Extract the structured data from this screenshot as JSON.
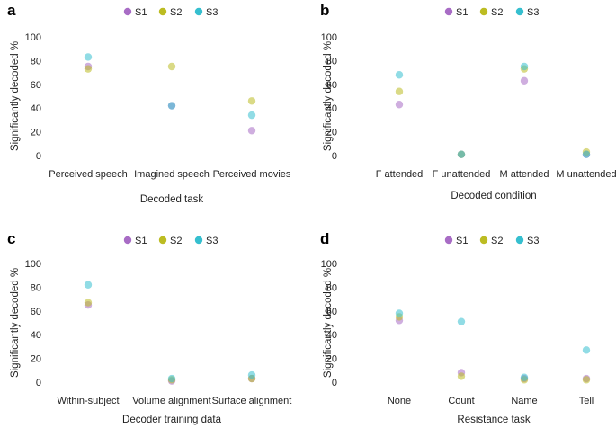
{
  "colors": {
    "S1": "#a86cc5",
    "S2": "#bcbc22",
    "S3": "#36bfcf"
  },
  "chart_data": [
    {
      "type": "scatter",
      "panel": "a",
      "xlabel": "Decoded task",
      "ylabel": "Significantly decoded %",
      "ylim": [
        0,
        100
      ],
      "yticks": [
        0,
        20,
        40,
        60,
        80,
        100
      ],
      "legend": [
        "S1",
        "S2",
        "S3"
      ],
      "categories": [
        "Perceived speech",
        "Imagined speech",
        "Perceived movies"
      ],
      "series": [
        {
          "name": "S1",
          "values": [
            75,
            42,
            21
          ]
        },
        {
          "name": "S2",
          "values": [
            73,
            75,
            46
          ]
        },
        {
          "name": "S3",
          "values": [
            83,
            42,
            34
          ]
        }
      ]
    },
    {
      "type": "scatter",
      "panel": "b",
      "xlabel": "Decoded condition",
      "ylabel": "Significantly decoded %",
      "ylim": [
        0,
        100
      ],
      "yticks": [
        0,
        20,
        40,
        60,
        80,
        100
      ],
      "legend": [
        "S1",
        "S2",
        "S3"
      ],
      "categories": [
        "F attended",
        "F unattended",
        "M attended",
        "M unattended"
      ],
      "series": [
        {
          "name": "S1",
          "values": [
            43,
            1,
            63,
            1
          ]
        },
        {
          "name": "S2",
          "values": [
            54,
            1,
            73,
            3
          ]
        },
        {
          "name": "S3",
          "values": [
            68,
            1,
            75,
            1
          ]
        }
      ]
    },
    {
      "type": "scatter",
      "panel": "c",
      "xlabel": "Decoder training data",
      "ylabel": "Significantly decoded %",
      "ylim": [
        0,
        100
      ],
      "yticks": [
        0,
        20,
        40,
        60,
        80,
        100
      ],
      "legend": [
        "S1",
        "S2",
        "S3"
      ],
      "categories": [
        "Within-subject",
        "Volume alignment",
        "Surface alignment"
      ],
      "series": [
        {
          "name": "S1",
          "values": [
            65,
            1,
            3
          ]
        },
        {
          "name": "S2",
          "values": [
            67,
            2,
            3
          ]
        },
        {
          "name": "S3",
          "values": [
            82,
            3,
            6
          ]
        }
      ]
    },
    {
      "type": "scatter",
      "panel": "d",
      "xlabel": "Resistance task",
      "ylabel": "Significantly decoded %",
      "ylim": [
        0,
        100
      ],
      "yticks": [
        0,
        20,
        40,
        60,
        80,
        100
      ],
      "legend": [
        "S1",
        "S2",
        "S3"
      ],
      "categories": [
        "None",
        "Count",
        "Name",
        "Tell"
      ],
      "series": [
        {
          "name": "S1",
          "values": [
            52,
            8,
            3,
            3
          ]
        },
        {
          "name": "S2",
          "values": [
            55,
            5,
            2,
            2
          ]
        },
        {
          "name": "S3",
          "values": [
            58,
            51,
            4,
            27
          ]
        }
      ]
    }
  ]
}
